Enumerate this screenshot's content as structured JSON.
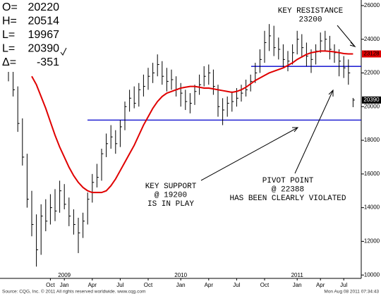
{
  "chart_data": {
    "type": "ohlc",
    "categories": [
      null,
      null,
      null,
      null,
      null,
      null,
      null,
      null,
      null,
      "Oct",
      null,
      null,
      "Jan",
      null,
      null,
      null,
      null,
      null,
      "Apr",
      null,
      null,
      null,
      null,
      null,
      "Jul",
      null,
      null,
      null,
      null,
      null,
      "Oct",
      null,
      null,
      null,
      null,
      null,
      null,
      "Jan",
      null,
      null,
      null,
      null,
      null,
      "Apr",
      null,
      null,
      null,
      null,
      null,
      "Jul",
      null,
      null,
      null,
      null,
      null,
      "Oct",
      null,
      null,
      null,
      null,
      null,
      null,
      "Jan",
      null,
      null,
      null,
      null,
      "Apr",
      null,
      null,
      null,
      null,
      "Jul",
      null,
      null
    ],
    "year_labels": [
      null,
      null,
      null,
      null,
      null,
      null,
      null,
      null,
      null,
      null,
      null,
      null,
      "2009",
      null,
      null,
      null,
      null,
      null,
      null,
      null,
      null,
      null,
      null,
      null,
      null,
      null,
      null,
      null,
      null,
      null,
      null,
      null,
      null,
      null,
      null,
      null,
      null,
      "2010",
      null,
      null,
      null,
      null,
      null,
      null,
      null,
      null,
      null,
      null,
      null,
      null,
      null,
      null,
      null,
      null,
      null,
      null,
      null,
      null,
      null,
      null,
      null,
      null,
      "2011",
      null,
      null,
      null,
      null,
      null,
      null,
      null,
      null,
      null,
      null,
      null,
      null
    ],
    "ohlc": {
      "color": "#000000",
      "high": [
        23000,
        22400,
        21200,
        19300,
        17200,
        15000,
        13600,
        14200,
        14500,
        14800,
        15100,
        15600,
        15400,
        14600,
        13900,
        13400,
        13700,
        14900,
        16000,
        16600,
        17500,
        18400,
        18900,
        18600,
        19200,
        20300,
        21000,
        21200,
        21400,
        21900,
        22300,
        22600,
        23100,
        22700,
        22300,
        22200,
        21800,
        21400,
        21000,
        20800,
        21300,
        21900,
        22400,
        22500,
        22200,
        21300,
        20500,
        20600,
        20900,
        21100,
        21300,
        21600,
        21900,
        22600,
        23400,
        24500,
        24900,
        24800,
        24100,
        23700,
        23300,
        23700,
        24500,
        24300,
        23800,
        23400,
        23700,
        24400,
        24500,
        24200,
        23700,
        23400,
        23000,
        22800,
        20514
      ],
      "low": [
        21500,
        20600,
        18500,
        16500,
        14000,
        12300,
        10500,
        11200,
        12600,
        13000,
        13200,
        13700,
        13900,
        12900,
        12400,
        11300,
        12200,
        13000,
        14300,
        15200,
        15600,
        17000,
        17500,
        17200,
        17600,
        18600,
        19700,
        19900,
        20000,
        20600,
        21000,
        21400,
        21800,
        21300,
        20900,
        21000,
        20600,
        20000,
        19800,
        19600,
        20100,
        20700,
        21200,
        21300,
        20700,
        19400,
        18900,
        19400,
        19700,
        20000,
        20300,
        20600,
        20900,
        21400,
        22000,
        22600,
        23300,
        23000,
        22800,
        22300,
        22100,
        22500,
        23100,
        22900,
        22400,
        22000,
        22500,
        23200,
        23300,
        22800,
        22600,
        21800,
        21700,
        21300,
        19967
      ],
      "close": [
        22300,
        21000,
        19000,
        17000,
        14500,
        13000,
        11500,
        13500,
        13200,
        14000,
        13800,
        15000,
        14200,
        13500,
        13000,
        12500,
        13200,
        14500,
        15500,
        15800,
        17200,
        17800,
        18200,
        17800,
        18800,
        20000,
        20500,
        20200,
        21000,
        21200,
        21800,
        22000,
        22500,
        21800,
        21500,
        21600,
        21000,
        20800,
        20300,
        20200,
        20900,
        21300,
        21800,
        22000,
        21200,
        20000,
        19800,
        20200,
        20300,
        20500,
        20800,
        21000,
        21500,
        22000,
        22800,
        23800,
        24200,
        23500,
        23400,
        22800,
        22700,
        23200,
        24000,
        23500,
        23000,
        22800,
        23300,
        23900,
        24000,
        23400,
        23200,
        22700,
        22300,
        22000,
        20390
      ]
    },
    "moving_average": {
      "color": "#e00000",
      "values": [
        null,
        null,
        null,
        null,
        null,
        21800,
        21300,
        20600,
        19900,
        19100,
        18300,
        17600,
        17000,
        16400,
        15900,
        15500,
        15200,
        15000,
        14900,
        14900,
        14900,
        15000,
        15300,
        15700,
        16200,
        16700,
        17200,
        17700,
        18300,
        18900,
        19400,
        19900,
        20300,
        20600,
        20800,
        20900,
        21000,
        21100,
        21150,
        21200,
        21200,
        21150,
        21100,
        21100,
        21050,
        21000,
        20950,
        20900,
        20850,
        20900,
        21000,
        21150,
        21350,
        21550,
        21700,
        21850,
        22000,
        22100,
        22200,
        22300,
        22450,
        22600,
        22800,
        22950,
        23100,
        23200,
        23250,
        23300,
        23300,
        23280,
        23250,
        23200,
        23150,
        23130,
        23128
      ]
    },
    "levels": [
      {
        "value": 22388,
        "color": "#0000cc"
      },
      {
        "value": 19200,
        "color": "#0000cc"
      }
    ],
    "ylim": [
      9800,
      26330
    ],
    "yticks": [
      10000,
      12000,
      14000,
      16000,
      18000,
      20000,
      22000,
      24000,
      26000
    ],
    "annotations": {
      "resistance": [
        "KEY RESISTANCE",
        "23200"
      ],
      "support": [
        "KEY SUPPORT",
        "@ 19200",
        "IS IN PLAY"
      ],
      "pivot": [
        "PIVOT POINT",
        "@ 22388",
        "HAS BEEN CLEARLY VIOLATED"
      ]
    },
    "ohlc_box": [
      {
        "label": "O=",
        "value": 20220
      },
      {
        "label": "H=",
        "value": 20514
      },
      {
        "label": "L=",
        "value": 19967
      },
      {
        "label": "L=",
        "value": 20390
      },
      {
        "label": "Δ=",
        "value": -351
      }
    ],
    "footer_left": "Source: CQG, Inc. © 2011 All rights reserved worldwide. www.cqg.com",
    "footer_right": "Mon Aug 08 2011 07:34:43"
  }
}
